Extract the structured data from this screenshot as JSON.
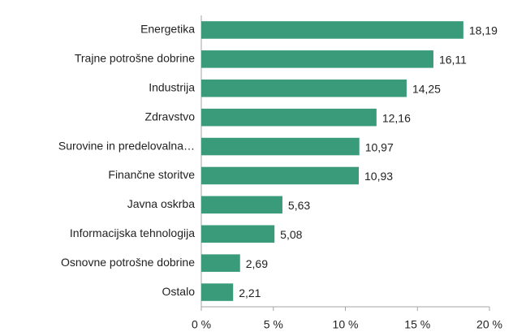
{
  "chart_data": {
    "type": "bar",
    "orientation": "horizontal",
    "categories": [
      "Energetika",
      "Trajne potrošne dobrine",
      "Industrija",
      "Zdravstvo",
      "Surovine in predelovalna…",
      "Finančne storitve",
      "Javna oskrba",
      "Informacijska tehnologija",
      "Osnovne potrošne dobrine",
      "Ostalo"
    ],
    "values": [
      18.19,
      16.11,
      14.25,
      12.16,
      10.97,
      10.93,
      5.63,
      5.08,
      2.69,
      2.21
    ],
    "value_labels": [
      "18,19",
      "16,11",
      "14,25",
      "12,16",
      "10,97",
      "10,93",
      "5,63",
      "5,08",
      "2,69",
      "2,21"
    ],
    "color": "#3a9b7b",
    "xlim": [
      0,
      20
    ],
    "xticks": [
      {
        "value": 0,
        "label": "0 %"
      },
      {
        "value": 5,
        "label": "5 %"
      },
      {
        "value": 10,
        "label": "10 %"
      },
      {
        "value": 15,
        "label": "15 %"
      },
      {
        "value": 20,
        "label": "20 %"
      }
    ],
    "grid": false
  }
}
